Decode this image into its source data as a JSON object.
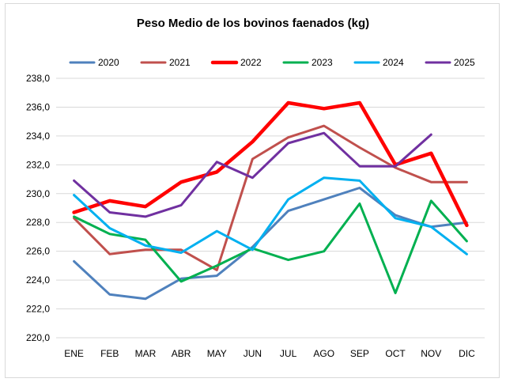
{
  "chart_data": {
    "type": "line",
    "title": "Peso Medio de los bovinos faenados (kg)",
    "xlabel": "",
    "ylabel": "",
    "ylim": [
      220,
      238
    ],
    "ytick_step": 2,
    "ytick_labels": [
      "220,0",
      "222,0",
      "224,0",
      "226,0",
      "228,0",
      "230,0",
      "232,0",
      "234,0",
      "236,0",
      "238,0"
    ],
    "categories": [
      "ENE",
      "FEB",
      "MAR",
      "ABR",
      "MAY",
      "JUN",
      "JUL",
      "AGO",
      "SEP",
      "OCT",
      "NOV",
      "DIC"
    ],
    "grid": true,
    "legend_position": "top",
    "series": [
      {
        "name": "2020",
        "color": "#4f81bd",
        "bold": false,
        "values": [
          225.3,
          223.0,
          222.7,
          224.1,
          224.3,
          226.3,
          228.8,
          229.6,
          230.4,
          228.5,
          227.7,
          228.0
        ]
      },
      {
        "name": "2021",
        "color": "#c0504d",
        "bold": false,
        "values": [
          228.3,
          225.8,
          226.1,
          226.1,
          224.7,
          232.4,
          233.9,
          234.7,
          233.2,
          231.8,
          230.8,
          230.8
        ]
      },
      {
        "name": "2022",
        "color": "#ff0000",
        "bold": true,
        "values": [
          228.7,
          229.5,
          229.1,
          230.8,
          231.5,
          233.6,
          236.3,
          235.9,
          236.3,
          232.0,
          232.8,
          227.8
        ]
      },
      {
        "name": "2023",
        "color": "#00b050",
        "bold": false,
        "values": [
          228.4,
          227.2,
          226.8,
          223.9,
          225.0,
          226.2,
          225.4,
          226.0,
          229.3,
          223.1,
          229.5,
          226.7
        ]
      },
      {
        "name": "2024",
        "color": "#00b0f0",
        "bold": false,
        "values": [
          229.9,
          227.6,
          226.4,
          225.9,
          227.4,
          226.1,
          229.6,
          231.1,
          230.9,
          228.3,
          227.7,
          225.8
        ]
      },
      {
        "name": "2025",
        "color": "#7030a0",
        "bold": false,
        "values": [
          230.9,
          228.7,
          228.4,
          229.2,
          232.2,
          231.1,
          233.5,
          234.2,
          231.9,
          231.9,
          234.1,
          null
        ]
      }
    ]
  }
}
